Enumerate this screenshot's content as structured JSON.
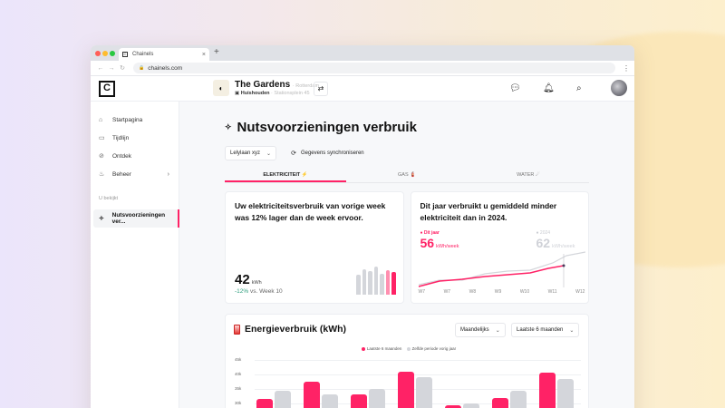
{
  "browser": {
    "tab_title": "Chainels",
    "new_tab": "+",
    "close": "×",
    "url": "chainels.com",
    "nav": [
      "←",
      "→",
      "↻"
    ]
  },
  "header": {
    "logo": "C",
    "community": {
      "name": "The Gardens",
      "city": "· Rotterdam",
      "type": "Huishouden",
      "address": "· Stationsplein 45"
    },
    "icons": [
      "chat-icon",
      "bell-icon",
      "search-icon",
      "avatar"
    ]
  },
  "sidebar": {
    "items": [
      {
        "label": "Startpagina",
        "icon": "⌂"
      },
      {
        "label": "Tijdlijn",
        "icon": "▭"
      },
      {
        "label": "Ontdek",
        "icon": "⊘"
      },
      {
        "label": "Beheer",
        "icon": "♨",
        "chevron": "›"
      }
    ],
    "section_label": "U bekijkt",
    "active_item": {
      "label": "Nutsvoorzieningen ver...",
      "icon": "✧"
    }
  },
  "page": {
    "title": "Nutsvoorzieningen verbruik",
    "title_icon": "✧",
    "location_select": "Lelylaan xyz",
    "sync_label": "Gegevens synchroniseren",
    "tabs": [
      {
        "label": "ELEKTRICITEIT ⚡",
        "active": true
      },
      {
        "label": "GAS 🧯",
        "active": false
      },
      {
        "label": "WATER ☄",
        "active": false
      }
    ]
  },
  "card_weekly": {
    "title": "Uw elektriciteitsverbruik van vorige week was 12% lager dan de week ervoor.",
    "value": "42",
    "unit": "kWh",
    "change": "-12%",
    "change_suffix": " vs. Week 10",
    "mini_bars": [
      {
        "h": 22,
        "color": "#d4d6db"
      },
      {
        "h": 28,
        "color": "#d4d6db"
      },
      {
        "h": 26,
        "color": "#d4d6db"
      },
      {
        "h": 31,
        "color": "#d4d6db"
      },
      {
        "h": 23,
        "color": "#d4d6db"
      },
      {
        "h": 27,
        "color": "#ff8fb0"
      },
      {
        "h": 25,
        "color": "#ff2266"
      }
    ]
  },
  "card_yearly": {
    "title": "Dit jaar verbruikt u gemiddeld minder elektriciteit dan in 2024.",
    "this_year_label": "● Dit jaar",
    "this_year_value": "56",
    "last_year_label": "● 2024",
    "last_year_value": "62",
    "unit": "kWh/week",
    "x_ticks": [
      "W7",
      "W7",
      "W8",
      "W9",
      "W10",
      "W11",
      "W12"
    ]
  },
  "energy_card": {
    "title": "Energieverbruik (kWh)",
    "select_period": "Maandelijks",
    "select_range": "Laatste 6 maanden",
    "legend_current": "Laatste 6 maanden",
    "legend_previous": "Zelfde periode vorig jaar",
    "y_labels": [
      "45k",
      "40k",
      "35k",
      "30k"
    ]
  },
  "colors": {
    "accent": "#ff2266",
    "gray_series": "#d4d6db",
    "positive": "#2e9e7d"
  },
  "chart_data": [
    {
      "type": "bar",
      "title": "Energieverbruik (kWh)",
      "series": [
        {
          "name": "Laatste 6 maanden",
          "values": [
            31500,
            37500,
            33000,
            41000,
            29500,
            32000,
            40500
          ]
        },
        {
          "name": "Zelfde periode vorig jaar",
          "values": [
            34500,
            33000,
            35000,
            39000,
            30000,
            34500,
            38500
          ]
        }
      ],
      "ylim": [
        30000,
        45000
      ],
      "y_ticks": [
        "30k",
        "35k",
        "40k",
        "45k"
      ],
      "legend_position": "top"
    },
    {
      "type": "line",
      "title": "Dit jaar verbruikt u gemiddeld minder elektriciteit dan in 2024.",
      "x": [
        "W7",
        "W7",
        "W8",
        "W9",
        "W10",
        "W11",
        "W12"
      ],
      "series": [
        {
          "name": "Dit jaar",
          "values": [
            44,
            48,
            50,
            51,
            52,
            55,
            56
          ]
        },
        {
          "name": "2024",
          "values": [
            45,
            47,
            51,
            53,
            56,
            61,
            62
          ]
        }
      ]
    }
  ]
}
